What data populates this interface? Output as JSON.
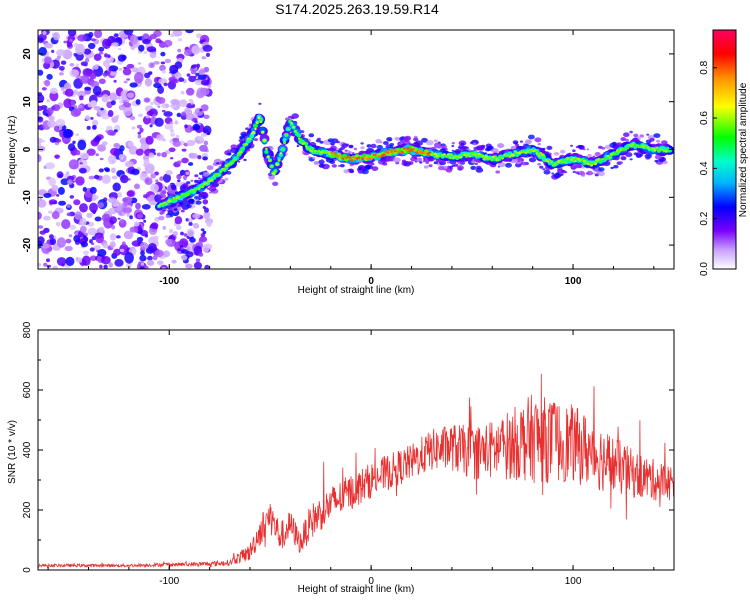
{
  "title": "S174.2025.263.19.59.R14",
  "chart_data": [
    {
      "type": "heatmap",
      "panel": "spectrogram",
      "xlabel": "Height of straight line (km)",
      "ylabel": "Frequency (Hz)",
      "xlim": [
        -165,
        150
      ],
      "ylim": [
        -25,
        25
      ],
      "x_ticks": [
        -100,
        0,
        100
      ],
      "y_ticks": [
        -20,
        -10,
        0,
        10,
        20
      ],
      "x_tick_labels": [
        "-100",
        "0",
        "100"
      ],
      "y_tick_labels": [
        "-20",
        "-10",
        "0",
        "10",
        "20"
      ],
      "colorbar": {
        "label": "Normalized spectral amplitude",
        "range": [
          0.0,
          0.95
        ],
        "ticks": [
          0.0,
          0.2,
          0.4,
          0.6,
          0.8
        ],
        "tick_labels": [
          "0.0",
          "0.2",
          "0.4",
          "0.6",
          "0.8"
        ],
        "colormap": [
          "#ffffff",
          "#9f00ff",
          "#0000ff",
          "#00c8ff",
          "#00ff00",
          "#ffff00",
          "#ff8000",
          "#ff0000",
          "#ff0080"
        ]
      },
      "ridge": {
        "x": [
          -105,
          -95,
          -85,
          -75,
          -65,
          -58,
          -55,
          -52,
          -48,
          -44,
          -40,
          -35,
          -30,
          -20,
          -10,
          0,
          10,
          20,
          30,
          40,
          50,
          60,
          70,
          80,
          90,
          100,
          110,
          120,
          130,
          140,
          148
        ],
        "y": [
          -12,
          -10,
          -8,
          -5,
          -1,
          4,
          7,
          0,
          -5,
          0,
          6,
          2,
          0,
          -1,
          -2,
          -1.5,
          -0.5,
          0,
          -1,
          -1.5,
          -1,
          -2,
          -1,
          0,
          -3,
          -2,
          -3,
          -1,
          1,
          0,
          0
        ]
      }
    },
    {
      "type": "line",
      "panel": "snr",
      "xlabel": "Height of straight line (km)",
      "ylabel": "SNR (10 * v/v)",
      "xlim": [
        -165,
        150
      ],
      "ylim": [
        0,
        800
      ],
      "x_ticks": [
        -100,
        0,
        100
      ],
      "y_ticks": [
        0,
        200,
        400,
        600,
        800
      ],
      "x_tick_labels": [
        "-100",
        "0",
        "100"
      ],
      "y_tick_labels": [
        "0",
        "200",
        "400",
        "600",
        "800"
      ],
      "series": [
        {
          "name": "SNR",
          "color": "#e83030",
          "envelope_x": [
            -165,
            -140,
            -120,
            -100,
            -80,
            -70,
            -60,
            -55,
            -50,
            -45,
            -40,
            -35,
            -30,
            -20,
            -10,
            0,
            10,
            20,
            30,
            40,
            50,
            60,
            70,
            80,
            90,
            100,
            110,
            120,
            130,
            140,
            150
          ],
          "envelope_y": [
            15,
            15,
            15,
            18,
            20,
            25,
            60,
            130,
            180,
            110,
            150,
            90,
            160,
            220,
            260,
            300,
            330,
            360,
            400,
            410,
            390,
            400,
            420,
            440,
            430,
            420,
            390,
            350,
            320,
            300,
            290
          ],
          "noise_amplitude": [
            5,
            5,
            5,
            6,
            8,
            10,
            30,
            50,
            60,
            50,
            50,
            40,
            60,
            60,
            60,
            60,
            60,
            60,
            70,
            80,
            90,
            100,
            120,
            150,
            140,
            130,
            120,
            100,
            80,
            70,
            60
          ]
        }
      ]
    }
  ]
}
